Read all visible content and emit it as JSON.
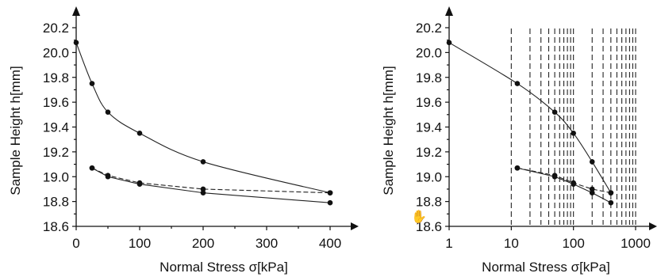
{
  "chart_data": [
    {
      "type": "line",
      "xscale": "linear",
      "xlabel": "Normal Stress   σ[kPa]",
      "ylabel": "Sample Height   h[mm]",
      "xlim": [
        0,
        440
      ],
      "ylim": [
        18.6,
        20.2
      ],
      "xticks": [
        0,
        100,
        200,
        300,
        400
      ],
      "xtick_labels": [
        "0",
        "100",
        "200",
        "300",
        "400"
      ],
      "yticks": [
        18.6,
        18.8,
        19.0,
        19.2,
        19.4,
        19.6,
        19.8,
        20.0,
        20.2
      ],
      "ytick_labels": [
        "18.6",
        "18.8",
        "19.0",
        "19.2",
        "19.4",
        "19.6",
        "19.8",
        "20.0",
        "20.2"
      ],
      "grid": false,
      "series": [
        {
          "style": "solid",
          "x": [
            0,
            25,
            50,
            100,
            200,
            400
          ],
          "y": [
            20.08,
            19.75,
            19.52,
            19.35,
            19.12,
            18.87
          ]
        },
        {
          "style": "dashed",
          "x": [
            25,
            50,
            100,
            200,
            400
          ],
          "y": [
            19.07,
            19.01,
            18.95,
            18.9,
            18.87
          ]
        },
        {
          "style": "solid",
          "x": [
            25,
            50,
            100,
            200,
            400
          ],
          "y": [
            19.07,
            19.0,
            18.94,
            18.87,
            18.79
          ]
        }
      ]
    },
    {
      "type": "line",
      "xscale": "log",
      "xlabel": "Normal Stress   σ[kPa]",
      "ylabel": "Sample Height   h[mm]",
      "xlim": [
        1,
        1500
      ],
      "ylim": [
        18.6,
        20.2
      ],
      "xticks": [
        1,
        10,
        100,
        1000
      ],
      "xtick_labels": [
        "1",
        "10",
        "100",
        "1000"
      ],
      "yticks": [
        18.6,
        18.8,
        19.0,
        19.2,
        19.4,
        19.6,
        19.8,
        20.0,
        20.2
      ],
      "ytick_labels": [
        "18.6",
        "18.8",
        "19.0",
        "19.2",
        "19.4",
        "19.6",
        "19.8",
        "20.0",
        "20.2"
      ],
      "grid": "dashed vertical lines at 10-1000",
      "series": [
        {
          "style": "solid",
          "x": [
            1,
            12.5,
            50,
            100,
            200,
            400
          ],
          "y": [
            20.08,
            19.75,
            19.52,
            19.35,
            19.12,
            18.87
          ]
        },
        {
          "style": "dashed",
          "x": [
            12.5,
            50,
            100,
            200,
            400
          ],
          "y": [
            19.07,
            19.01,
            18.95,
            18.9,
            18.87
          ]
        },
        {
          "style": "solid",
          "x": [
            12.5,
            50,
            100,
            200,
            400
          ],
          "y": [
            19.07,
            19.0,
            18.94,
            18.87,
            18.79
          ]
        }
      ]
    }
  ]
}
